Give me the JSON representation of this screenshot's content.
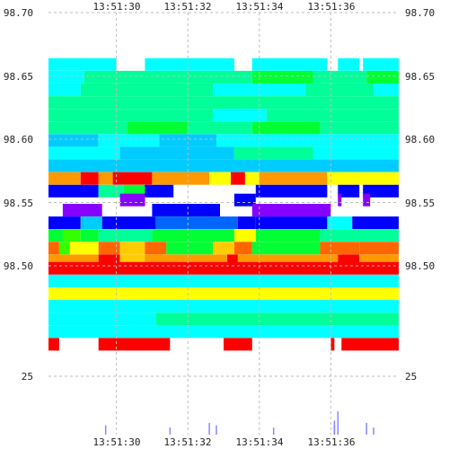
{
  "chart_data": {
    "type": "heatmap",
    "title": "",
    "xlabel": "",
    "ylabel": "",
    "x_ticks": [
      "13:51:30",
      "13:51:32",
      "13:51:34",
      "13:51:36"
    ],
    "x_range": [
      "13:51:28.1",
      "13:51:37.9"
    ],
    "y_ticks_left": [
      "98.70",
      "98.65",
      "98.60",
      "98.55",
      "98.50"
    ],
    "y_ticks_right": [
      "98.70",
      "98.65",
      "98.60",
      "98.55",
      "98.50"
    ],
    "y_range": [
      98.47,
      98.7
    ],
    "volume_tick_left": "25",
    "volume_tick_right": "25",
    "grid": true,
    "colors": {
      "level_1": "#00ffff",
      "level_2": "#00ff99",
      "level_3": "#00ff33",
      "level_4": "#00ccff",
      "level_5": "#ff9900",
      "level_6": "#ff0000",
      "level_7": "#0000ff",
      "level_8": "#8800ff",
      "level_9": "#ffff00",
      "level_10": "#ffcc00",
      "level_11": "#ff6600",
      "level_12": "#33ff00",
      "level_13": "#0066ff",
      "volume_bar": "#8888ff",
      "grid": "#bdbdbd",
      "text": "#222222"
    },
    "rows": [
      {
        "price": 98.659,
        "segments": [
          [
            "13:51:28.1",
            "13:51:30.0",
            "level_1"
          ],
          [
            "13:51:30.8",
            "13:51:33.3",
            "level_1"
          ],
          [
            "13:51:33.8",
            "13:51:35.9",
            "level_1"
          ],
          [
            "13:51:36.2",
            "13:51:36.8",
            "level_1"
          ],
          [
            "13:51:36.9",
            "13:51:37.9",
            "level_1"
          ]
        ]
      },
      {
        "price": 98.649,
        "segments": [
          [
            "13:51:28.1",
            "13:51:29.1",
            "level_1"
          ],
          [
            "13:51:29.1",
            "13:51:33.8",
            "level_2"
          ],
          [
            "13:51:33.8",
            "13:51:35.5",
            "level_3"
          ],
          [
            "13:51:35.5",
            "13:51:37.0",
            "level_2"
          ],
          [
            "13:51:37.0",
            "13:51:37.9",
            "level_3"
          ]
        ]
      },
      {
        "price": 98.639,
        "segments": [
          [
            "13:51:28.1",
            "13:51:29.0",
            "level_1"
          ],
          [
            "13:51:29.0",
            "13:51:32.7",
            "level_2"
          ],
          [
            "13:51:32.7",
            "13:51:35.3",
            "level_1"
          ],
          [
            "13:51:35.3",
            "13:51:37.2",
            "level_2"
          ],
          [
            "13:51:37.2",
            "13:51:37.9",
            "level_1"
          ]
        ]
      },
      {
        "price": 98.629,
        "segments": [
          [
            "13:51:28.1",
            "13:51:37.9",
            "level_2"
          ]
        ]
      },
      {
        "price": 98.619,
        "segments": [
          [
            "13:51:28.1",
            "13:51:32.7",
            "level_2"
          ],
          [
            "13:51:32.7",
            "13:51:34.2",
            "level_1"
          ],
          [
            "13:51:34.2",
            "13:51:37.9",
            "level_2"
          ]
        ]
      },
      {
        "price": 98.609,
        "segments": [
          [
            "13:51:28.1",
            "13:51:30.3",
            "level_2"
          ],
          [
            "13:51:30.3",
            "13:51:32.0",
            "level_3"
          ],
          [
            "13:51:32.0",
            "13:51:33.8",
            "level_2"
          ],
          [
            "13:51:33.8",
            "13:51:35.7",
            "level_3"
          ],
          [
            "13:51:35.7",
            "13:51:37.9",
            "level_2"
          ]
        ]
      },
      {
        "price": 98.599,
        "segments": [
          [
            "13:51:28.1",
            "13:51:29.5",
            "level_4"
          ],
          [
            "13:51:29.5",
            "13:51:31.2",
            "level_1"
          ],
          [
            "13:51:31.2",
            "13:51:32.8",
            "level_4"
          ],
          [
            "13:51:32.8",
            "13:51:35.3",
            "level_1"
          ],
          [
            "13:51:35.3",
            "13:51:37.9",
            "level_1"
          ]
        ]
      },
      {
        "price": 98.589,
        "segments": [
          [
            "13:51:28.1",
            "13:51:30.1",
            "level_1"
          ],
          [
            "13:51:30.1",
            "13:51:33.3",
            "level_4"
          ],
          [
            "13:51:33.3",
            "13:51:35.5",
            "level_2"
          ],
          [
            "13:51:35.5",
            "13:51:37.9",
            "level_1"
          ]
        ]
      },
      {
        "price": 98.579,
        "segments": [
          [
            "13:51:28.1",
            "13:51:37.9",
            "level_4"
          ]
        ]
      },
      {
        "price": 98.569,
        "segments": [
          [
            "13:51:28.1",
            "13:51:29.0",
            "level_5"
          ],
          [
            "13:51:29.0",
            "13:51:29.5",
            "level_6"
          ],
          [
            "13:51:29.5",
            "13:51:29.9",
            "level_5"
          ],
          [
            "13:51:29.9",
            "13:51:31.0",
            "level_6"
          ],
          [
            "13:51:31.0",
            "13:51:32.6",
            "level_5"
          ],
          [
            "13:51:32.6",
            "13:51:33.2",
            "level_9"
          ],
          [
            "13:51:33.2",
            "13:51:33.6",
            "level_6"
          ],
          [
            "13:51:33.6",
            "13:51:34.0",
            "level_9"
          ],
          [
            "13:51:34.0",
            "13:51:35.9",
            "level_5"
          ],
          [
            "13:51:35.9",
            "13:51:37.2",
            "level_9"
          ],
          [
            "13:51:37.2",
            "13:51:37.9",
            "level_9"
          ]
        ]
      },
      {
        "price": 98.559,
        "segments": [
          [
            "13:51:28.1",
            "13:51:29.5",
            "level_7"
          ],
          [
            "13:51:29.5",
            "13:51:30.2",
            "level_2"
          ],
          [
            "13:51:30.2",
            "13:51:30.8",
            "level_3"
          ],
          [
            "13:51:30.8",
            "13:51:31.6",
            "level_7"
          ],
          [
            "13:51:33.9",
            "13:51:35.9",
            "level_7"
          ],
          [
            "13:51:36.2",
            "13:51:36.8",
            "level_7"
          ],
          [
            "13:51:36.9",
            "13:51:37.9",
            "level_7"
          ]
        ]
      },
      {
        "price": 98.552,
        "segments": [
          [
            "13:51:30.1",
            "13:51:30.8",
            "level_8"
          ],
          [
            "13:51:33.3",
            "13:51:33.9",
            "level_7"
          ],
          [
            "13:51:36.2",
            "13:51:36.3",
            "level_8"
          ],
          [
            "13:51:36.9",
            "13:51:37.1",
            "level_8"
          ]
        ]
      },
      {
        "price": 98.544,
        "segments": [
          [
            "13:51:28.5",
            "13:51:29.6",
            "level_8"
          ],
          [
            "13:51:31.0",
            "13:51:32.9",
            "level_7"
          ],
          [
            "13:51:33.8",
            "13:51:36.0",
            "level_8"
          ]
        ]
      },
      {
        "price": 98.534,
        "segments": [
          [
            "13:51:28.1",
            "13:51:29.0",
            "level_7"
          ],
          [
            "13:51:29.0",
            "13:51:29.6",
            "level_4"
          ],
          [
            "13:51:29.6",
            "13:51:31.1",
            "level_7"
          ],
          [
            "13:51:31.1",
            "13:51:33.4",
            "level_13"
          ],
          [
            "13:51:33.4",
            "13:51:33.9",
            "level_7"
          ],
          [
            "13:51:33.9",
            "13:51:35.9",
            "level_7"
          ],
          [
            "13:51:35.9",
            "13:51:36.6",
            "level_1"
          ],
          [
            "13:51:36.6",
            "13:51:37.9",
            "level_7"
          ]
        ]
      },
      {
        "price": 98.524,
        "segments": [
          [
            "13:51:28.1",
            "13:51:28.5",
            "level_3"
          ],
          [
            "13:51:28.5",
            "13:51:29.0",
            "level_12"
          ],
          [
            "13:51:29.0",
            "13:51:29.5",
            "level_3"
          ],
          [
            "13:51:29.5",
            "13:51:31.0",
            "level_2"
          ],
          [
            "13:51:31.0",
            "13:51:33.3",
            "level_3"
          ],
          [
            "13:51:33.3",
            "13:51:33.9",
            "level_9"
          ],
          [
            "13:51:33.9",
            "13:51:35.7",
            "level_3"
          ],
          [
            "13:51:35.7",
            "13:51:37.9",
            "level_2"
          ]
        ]
      },
      {
        "price": 98.514,
        "segments": [
          [
            "13:51:28.1",
            "13:51:28.4",
            "level_11"
          ],
          [
            "13:51:28.4",
            "13:51:28.7",
            "level_12"
          ],
          [
            "13:51:28.7",
            "13:51:29.5",
            "level_9"
          ],
          [
            "13:51:29.5",
            "13:51:30.1",
            "level_11"
          ],
          [
            "13:51:30.1",
            "13:51:30.8",
            "level_10"
          ],
          [
            "13:51:30.8",
            "13:51:31.4",
            "level_11"
          ],
          [
            "13:51:31.4",
            "13:51:32.7",
            "level_3"
          ],
          [
            "13:51:32.7",
            "13:51:33.3",
            "level_10"
          ],
          [
            "13:51:33.3",
            "13:51:33.8",
            "level_11"
          ],
          [
            "13:51:33.8",
            "13:51:35.7",
            "level_3"
          ],
          [
            "13:51:35.7",
            "13:51:36.8",
            "level_11"
          ],
          [
            "13:51:36.8",
            "13:51:37.9",
            "level_11"
          ]
        ]
      },
      {
        "price": 98.504,
        "segments": [
          [
            "13:51:28.1",
            "13:51:29.5",
            "level_5"
          ],
          [
            "13:51:29.5",
            "13:51:30.1",
            "level_6"
          ],
          [
            "13:51:30.1",
            "13:51:30.8",
            "level_10"
          ],
          [
            "13:51:30.8",
            "13:51:33.1",
            "level_5"
          ],
          [
            "13:51:33.1",
            "13:51:33.4",
            "level_6"
          ],
          [
            "13:51:33.4",
            "13:51:36.2",
            "level_5"
          ],
          [
            "13:51:36.2",
            "13:51:36.8",
            "level_6"
          ],
          [
            "13:51:36.8",
            "13:51:37.9",
            "level_5"
          ]
        ]
      },
      {
        "price": 98.498,
        "segments": [
          [
            "13:51:28.1",
            "13:51:37.9",
            "level_6"
          ]
        ]
      },
      {
        "price": 98.488,
        "segments": [
          [
            "13:51:28.1",
            "13:51:37.9",
            "level_1"
          ]
        ]
      },
      {
        "price": 98.478,
        "segments": [
          [
            "13:51:28.1",
            "13:51:37.9",
            "level_9"
          ]
        ]
      },
      {
        "price": 98.468,
        "segments": [
          [
            "13:51:28.1",
            "13:51:37.9",
            "level_1"
          ]
        ]
      },
      {
        "price": 98.458,
        "segments": [
          [
            "13:51:28.1",
            "13:51:31.1",
            "level_1"
          ],
          [
            "13:51:31.1",
            "13:51:37.9",
            "level_2"
          ]
        ]
      },
      {
        "price": 98.448,
        "segments": [
          [
            "13:51:28.1",
            "13:51:37.9",
            "level_1"
          ]
        ]
      },
      {
        "price": 98.438,
        "segments": [
          [
            "13:51:28.1",
            "13:51:28.4",
            "level_6"
          ],
          [
            "13:51:29.5",
            "13:51:31.5",
            "level_6"
          ],
          [
            "13:51:33.0",
            "13:51:33.8",
            "level_6"
          ],
          [
            "13:51:36.0",
            "13:51:36.1",
            "level_6"
          ],
          [
            "13:51:36.3",
            "13:51:37.9",
            "level_6"
          ]
        ]
      }
    ],
    "volume_bars": [
      {
        "t": "13:51:29.7",
        "v": 4
      },
      {
        "t": "13:51:31.5",
        "v": 3
      },
      {
        "t": "13:51:32.6",
        "v": 5
      },
      {
        "t": "13:51:32.8",
        "v": 4
      },
      {
        "t": "13:51:34.4",
        "v": 3
      },
      {
        "t": "13:51:36.1",
        "v": 4
      },
      {
        "t": "13:51:36.1",
        "v": 6
      },
      {
        "t": "13:51:36.2",
        "v": 10
      },
      {
        "t": "13:51:37.0",
        "v": 5
      },
      {
        "t": "13:51:37.2",
        "v": 3
      }
    ],
    "volume_range": [
      0,
      25
    ]
  }
}
